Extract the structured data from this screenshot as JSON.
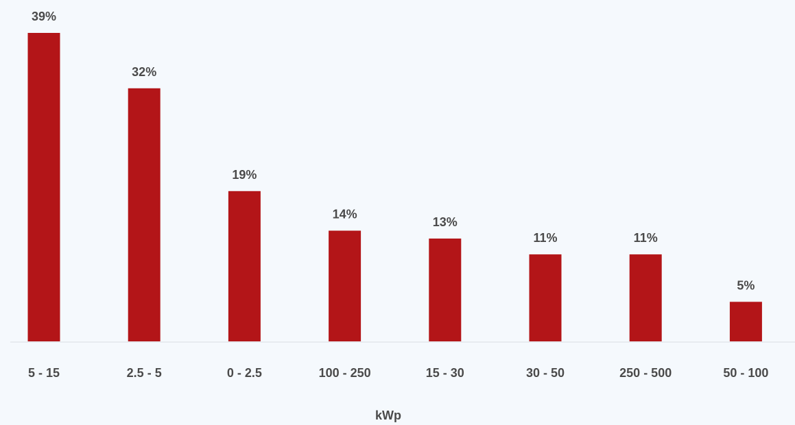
{
  "chart_data": {
    "type": "bar",
    "categories": [
      "5 - 15",
      "2.5 - 5",
      "0 - 2.5",
      "100 - 250",
      "15 - 30",
      "30 - 50",
      "250 - 500",
      "50 - 100"
    ],
    "values": [
      39,
      32,
      19,
      14,
      13,
      11,
      11,
      5
    ],
    "value_labels": [
      "39%",
      "32%",
      "19%",
      "14%",
      "13%",
      "11%",
      "11%",
      "5%"
    ],
    "title": "",
    "xlabel": "kWp",
    "ylabel": "",
    "ylim": [
      0,
      39
    ],
    "grid": false,
    "legend": "none",
    "colors": {
      "bar": "#b31518",
      "axis": "#d9dde2",
      "text": "#4a4a4a",
      "background": "#f5f9fd"
    }
  }
}
